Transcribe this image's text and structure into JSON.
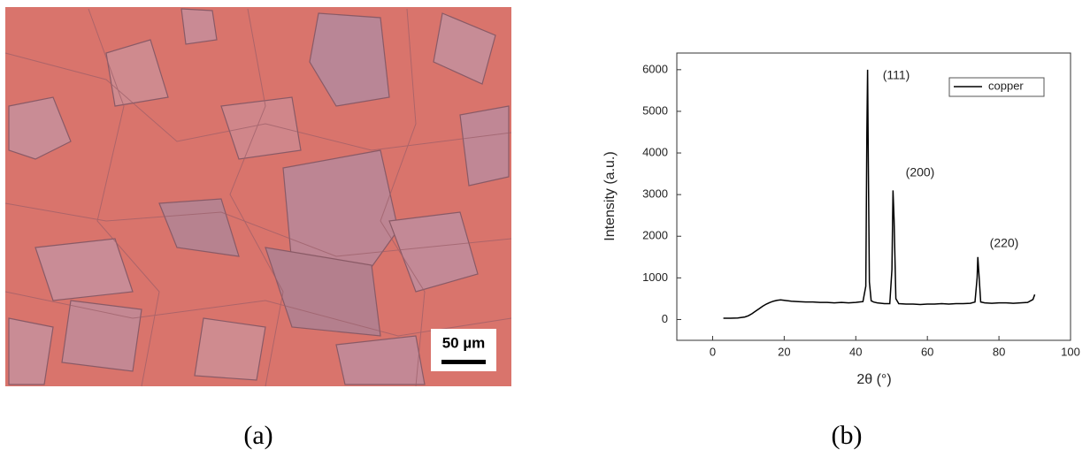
{
  "micrograph": {
    "scale_bar": "50 µm",
    "caption": "(a)"
  },
  "chart_data": {
    "type": "line",
    "caption": "(b)",
    "x_label": "2θ (°)",
    "y_label": "Intensity (a.u.)",
    "annotations": [
      "(111)",
      "(200)",
      "(220)"
    ],
    "xlim": [
      -10,
      100
    ],
    "ylim": [
      -500,
      6400
    ],
    "xticks": [
      0,
      20,
      40,
      60,
      80,
      100
    ],
    "yticks": [
      0,
      1000,
      2000,
      3000,
      4000,
      5000,
      6000
    ],
    "legend": "top-right",
    "x": [
      3,
      5,
      7,
      9,
      10,
      11,
      12,
      13,
      14,
      15,
      16,
      17,
      18,
      19,
      20,
      21,
      22,
      24,
      26,
      28,
      30,
      32,
      34,
      36,
      38,
      40,
      41,
      42,
      42.8,
      43.1,
      43.3,
      43.5,
      43.8,
      44.3,
      45,
      46,
      48,
      49.5,
      50.1,
      50.4,
      50.7,
      51.2,
      52,
      54,
      56,
      58,
      60,
      62,
      64,
      66,
      68,
      70,
      72,
      73.3,
      73.9,
      74.1,
      74.4,
      74.9,
      76,
      78,
      80,
      82,
      84,
      86,
      88,
      89.5,
      90
    ],
    "series": [
      {
        "name": "copper",
        "color": "#000000",
        "values": [
          30,
          30,
          35,
          60,
          90,
          140,
          200,
          260,
          320,
          370,
          410,
          440,
          460,
          470,
          460,
          450,
          440,
          430,
          420,
          420,
          410,
          410,
          400,
          410,
          400,
          410,
          420,
          430,
          800,
          4500,
          6000,
          3800,
          900,
          450,
          420,
          400,
          380,
          380,
          1200,
          3100,
          2400,
          500,
          380,
          370,
          370,
          360,
          370,
          370,
          380,
          370,
          380,
          380,
          390,
          420,
          1000,
          1500,
          1100,
          420,
          400,
          390,
          400,
          400,
          390,
          400,
          410,
          480,
          600
        ]
      }
    ]
  }
}
